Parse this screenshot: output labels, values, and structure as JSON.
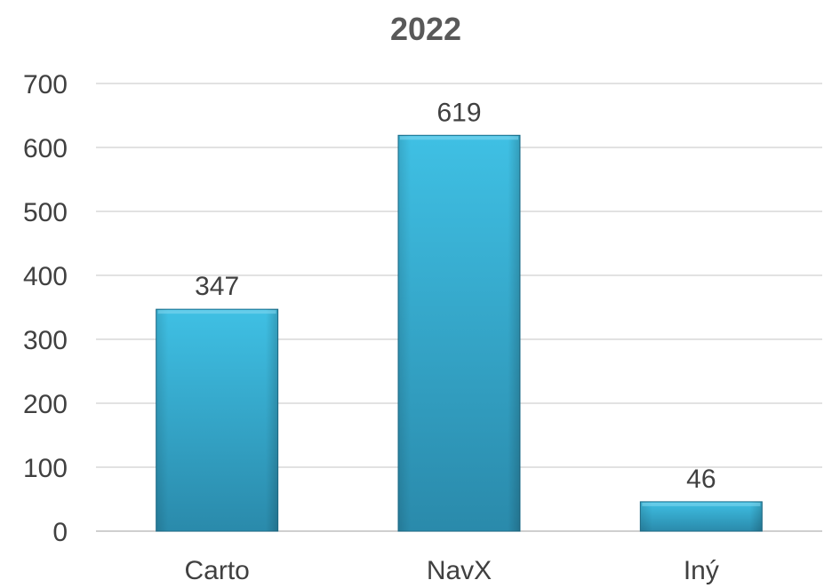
{
  "chart_data": {
    "type": "bar",
    "title": "2022",
    "categories": [
      "Carto",
      "NavX",
      "Iný"
    ],
    "values": [
      347,
      619,
      46
    ],
    "data_labels": [
      "347",
      "619",
      "46"
    ],
    "y_ticks": [
      "0",
      "100",
      "200",
      "300",
      "400",
      "500",
      "600",
      "700"
    ],
    "ylim": [
      0,
      700
    ],
    "xlabel": "",
    "ylabel": "",
    "grid": true,
    "legend": "none",
    "colors": {
      "bar_top": "#3fc0e4",
      "bar_bottom": "#2a8aab",
      "bar_edge": "#1f6f8c"
    }
  }
}
